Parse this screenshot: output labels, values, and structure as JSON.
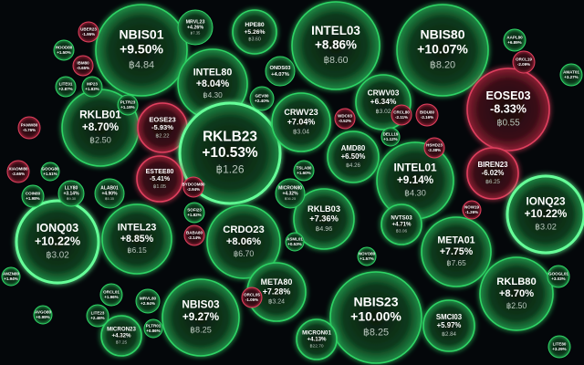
{
  "bubbles": [
    {
      "label": "NBIS01",
      "change": "+9.50%",
      "price": "฿4.84"
    },
    {
      "label": "INTEL03",
      "change": "+8.86%",
      "price": "฿8.60"
    },
    {
      "label": "NBIS80",
      "change": "+10.07%",
      "price": "฿8.20"
    },
    {
      "label": "INTEL80",
      "change": "+8.04%",
      "price": "฿4.30"
    },
    {
      "label": "HPE80",
      "change": "+5.26%",
      "price": "฿3.60"
    },
    {
      "label": "MRVL23",
      "change": "+4.26%",
      "price": "฿7.35"
    },
    {
      "label": "EOSE03",
      "change": "-8.33%",
      "price": "฿0.55"
    },
    {
      "label": "RKLB01",
      "change": "+8.70%",
      "price": "฿2.50"
    },
    {
      "label": "EOSE23",
      "change": "-5.93%",
      "price": "฿2.22"
    },
    {
      "label": "RKLB23",
      "change": "+10.53%",
      "price": "฿1.26"
    },
    {
      "label": "CRWV23",
      "change": "+7.04%",
      "price": "฿3.04"
    },
    {
      "label": "CRWV03",
      "change": "+6.34%",
      "price": "฿3.02"
    },
    {
      "label": "AMD80",
      "change": "+6.50%",
      "price": "฿4.26"
    },
    {
      "label": "ESTEE80",
      "change": "-5.41%",
      "price": "฿1.05"
    },
    {
      "label": "INTEL01",
      "change": "+9.14%",
      "price": "฿4.30"
    },
    {
      "label": "BIREN23",
      "change": "-6.02%",
      "price": "฿6.25"
    },
    {
      "label": "IONQ23",
      "change": "+10.22%",
      "price": "฿3.02"
    },
    {
      "label": "IONQ03",
      "change": "+10.22%",
      "price": "฿3.02"
    },
    {
      "label": "INTEL23",
      "change": "+8.85%",
      "price": "฿6.15"
    },
    {
      "label": "CRDO23",
      "change": "+8.06%",
      "price": "฿6.70"
    },
    {
      "label": "RKLB03",
      "change": "+7.36%",
      "price": "฿4.96"
    },
    {
      "label": "META01",
      "change": "+7.75%",
      "price": "฿7.65"
    },
    {
      "label": "NVTS03",
      "change": "+4.71%",
      "price": "฿3.06"
    },
    {
      "label": "META80",
      "change": "+7.28%",
      "price": "฿3.24"
    },
    {
      "label": "NBIS03",
      "change": "+9.27%",
      "price": "฿8.25"
    },
    {
      "label": "NBIS23",
      "change": "+10.00%",
      "price": "฿8.25"
    },
    {
      "label": "SMCI03",
      "change": "+5.97%",
      "price": "฿2.84"
    },
    {
      "label": "RKLB80",
      "change": "+8.70%",
      "price": "฿2.50"
    },
    {
      "label": "MICRON23",
      "change": "+4.32%",
      "price": "฿7.25"
    },
    {
      "label": "MICRON01",
      "change": "+4.13%",
      "price": "฿22.70"
    },
    {
      "label": "MICRON80",
      "change": "+4.32%",
      "price": "฿36.25"
    },
    {
      "label": "ALAB01",
      "change": "+4.90%",
      "price": "฿5.35"
    },
    {
      "label": "LLY80",
      "change": "+3.14%",
      "price": "฿9.30"
    },
    {
      "label": "HOOD80",
      "change": "+1.50%"
    },
    {
      "label": "IBM80",
      "change": "-0.65%"
    },
    {
      "label": "UBER23",
      "change": "-1.95%"
    },
    {
      "label": "LITE01",
      "change": "+2.87%"
    },
    {
      "label": "MP23",
      "change": "+1.83%"
    },
    {
      "label": "PLTR23",
      "change": "+1.19%"
    },
    {
      "label": "ONDS03",
      "change": "+4.07%"
    },
    {
      "label": "GEV80",
      "change": "+2.40%"
    },
    {
      "label": "WDC03",
      "change": "-0.52%"
    },
    {
      "label": "CRCL80",
      "change": "-2.11%"
    },
    {
      "label": "BIDU80",
      "change": "-2.16%"
    },
    {
      "label": "DELL19",
      "change": "+1.12%"
    },
    {
      "label": "AAPL80",
      "change": "+6.89%"
    },
    {
      "label": "ORCL19",
      "change": "-2.09%"
    },
    {
      "label": "AMAT01",
      "change": "+3.27%"
    },
    {
      "label": "PANW80",
      "change": "-0.76%"
    },
    {
      "label": "GOOG80",
      "change": "+1.51%"
    },
    {
      "label": "XIAOMI80",
      "change": "-2.65%"
    },
    {
      "label": "COIN80",
      "change": "+1.98%"
    },
    {
      "label": "TSLA80",
      "change": "+1.60%"
    },
    {
      "label": "HSHD23",
      "change": "-2.38%"
    },
    {
      "label": "NOW19",
      "change": "-1.26%"
    },
    {
      "label": "BYDCOM80",
      "change": "-2.94%"
    },
    {
      "label": "SOFI23",
      "change": "+1.82%"
    },
    {
      "label": "ASML01",
      "change": "+0.53%"
    },
    {
      "label": "BABA80",
      "change": "-2.14%"
    },
    {
      "label": "NOVO80",
      "change": "+1.57%"
    },
    {
      "label": "ORCL01",
      "change": "+1.96%"
    },
    {
      "label": "MRVL80",
      "change": "+2.94%"
    },
    {
      "label": "LITE23",
      "change": "+2.46%"
    },
    {
      "label": "ORCL05",
      "change": "-1.05%"
    },
    {
      "label": "PLTR01",
      "change": "+0.86%"
    },
    {
      "label": "AVGO80",
      "change": "+0.99%"
    },
    {
      "label": "AMZN80",
      "change": "+1.94%"
    },
    {
      "label": "GOOGL01",
      "change": "+3.03%"
    },
    {
      "label": "LITE80",
      "change": "+3.29%"
    }
  ]
}
